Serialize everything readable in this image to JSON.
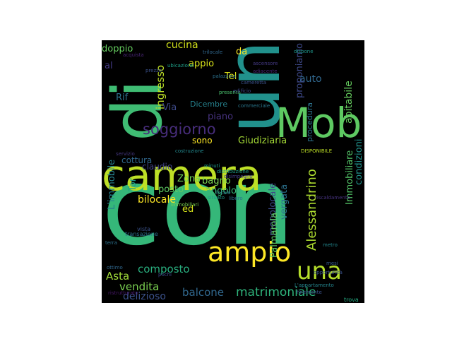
{
  "figure": {
    "background": "#000000",
    "page_background": "#ffffff",
    "colormap": "viridis"
  },
  "words": [
    {
      "text": "con",
      "color": "#35b779"
    },
    {
      "text": "un",
      "color": "#21918c"
    },
    {
      "text": "camera",
      "color": "#bddf26"
    },
    {
      "text": "di",
      "color": "#3fbc73"
    },
    {
      "text": "Mob",
      "color": "#5ec962"
    },
    {
      "text": "ampio",
      "color": "#fde725"
    },
    {
      "text": "una",
      "color": "#b5de2b"
    },
    {
      "text": "soggiorno",
      "color": "#472d7b"
    },
    {
      "text": "Alessandrino",
      "color": "#addc30"
    },
    {
      "text": "matrimoniale",
      "color": "#2fb47c"
    },
    {
      "text": "composto",
      "color": "#29af7f"
    },
    {
      "text": "vendita",
      "color": "#7ad151"
    },
    {
      "text": "balcone",
      "color": "#31688e"
    },
    {
      "text": "Asta",
      "color": "#a0da39"
    },
    {
      "text": "delizioso",
      "color": "#3b528b"
    },
    {
      "text": "cucina",
      "color": "#d2e21b"
    },
    {
      "text": "doppio",
      "color": "#65cb5e"
    },
    {
      "text": "al",
      "color": "#443983"
    },
    {
      "text": "Rif",
      "color": "#2c728e"
    },
    {
      "text": "ingresso",
      "color": "#bddf26"
    },
    {
      "text": "Via",
      "color": "#3e4a89"
    },
    {
      "text": "appio",
      "color": "#d8e219"
    },
    {
      "text": "Tel",
      "color": "#dde318"
    },
    {
      "text": "da",
      "color": "#fde725"
    },
    {
      "text": "auto",
      "color": "#31688e"
    },
    {
      "text": "proponiamo",
      "color": "#3e4989"
    },
    {
      "text": "abitabile",
      "color": "#65cb5e"
    },
    {
      "text": "Dicembre",
      "color": "#26828e"
    },
    {
      "text": "piano",
      "color": "#46327e"
    },
    {
      "text": "cottura",
      "color": "#31688e"
    },
    {
      "text": "sono",
      "color": "#fde725"
    },
    {
      "text": "Giudiziaria",
      "color": "#a5db36"
    },
    {
      "text": "procedura",
      "color": "#2c728e"
    },
    {
      "text": "L'immobile",
      "color": "#26828e"
    },
    {
      "text": "claudio",
      "color": "#414487"
    },
    {
      "text": "Zona",
      "color": "#70cf57"
    },
    {
      "text": "bagno",
      "color": "#7ad151"
    },
    {
      "text": "posto",
      "color": "#5ec962"
    },
    {
      "text": "Tor",
      "color": "#1f9a8a"
    },
    {
      "text": "angolo",
      "color": "#38b977"
    },
    {
      "text": "bilocale",
      "color": "#fde725"
    },
    {
      "text": "monolocale",
      "color": "#3e4989"
    },
    {
      "text": "vergata",
      "color": "#2c728e"
    },
    {
      "text": "Palmarola",
      "color": "#5ec962"
    },
    {
      "text": "Immobiliare",
      "color": "#54c568"
    },
    {
      "text": "condizioni",
      "color": "#21918c"
    },
    {
      "text": "ed",
      "color": "#d5e21a"
    },
    {
      "text": "presenta",
      "color": "#4ac16d"
    },
    {
      "text": "palazzina",
      "color": "#2c728e"
    },
    {
      "text": "cameretta",
      "color": "#3b528b"
    },
    {
      "text": "commerciale",
      "color": "#2a788e"
    },
    {
      "text": "servizio",
      "color": "#453781"
    },
    {
      "text": "costruzione",
      "color": "#23898e"
    },
    {
      "text": "immobiliari",
      "color": "#7ad151"
    },
    {
      "text": "terra",
      "color": "#2c728e"
    },
    {
      "text": "distribuzione",
      "color": "#1f9e89"
    },
    {
      "text": "vista",
      "color": "#3b528b"
    },
    {
      "text": "trova",
      "color": "#25ab82"
    },
    {
      "text": "ottimo",
      "color": "#31688e"
    },
    {
      "text": "pochi",
      "color": "#3e4989"
    },
    {
      "text": "minuti",
      "color": "#1f9a8a"
    },
    {
      "text": "adiacente",
      "color": "#482878"
    },
    {
      "text": "dispone",
      "color": "#1f968b"
    },
    {
      "text": "DISPONIBILE",
      "color": "#bddf26"
    },
    {
      "text": "locale",
      "color": "#2a788e"
    },
    {
      "text": "edificio",
      "color": "#3e4989"
    },
    {
      "text": "disimpegno",
      "color": "#433e85"
    },
    {
      "text": "situato",
      "color": "#1e9b8a"
    },
    {
      "text": "libero",
      "color": "#2d708e"
    },
    {
      "text": "riscaldamento",
      "color": "#46327e"
    },
    {
      "text": "finemente",
      "color": "#3b528b"
    },
    {
      "text": "L'appartamento",
      "color": "#25858e"
    },
    {
      "text": "ristrutturato",
      "color": "#48186a"
    },
    {
      "text": "transazione",
      "color": "#2c728e"
    },
    {
      "text": "metro",
      "color": "#23888e"
    },
    {
      "text": "acquista",
      "color": "#482576"
    },
    {
      "text": "prezzo",
      "color": "#3b528b"
    },
    {
      "text": "trilocale",
      "color": "#31688e"
    },
    {
      "text": "ubicazione",
      "color": "#1fa088"
    },
    {
      "text": "ascensore",
      "color": "#443983"
    },
    {
      "text": "mesi",
      "color": "#365c8d"
    },
    {
      "text": "opportunità",
      "color": "#3b528b"
    }
  ]
}
